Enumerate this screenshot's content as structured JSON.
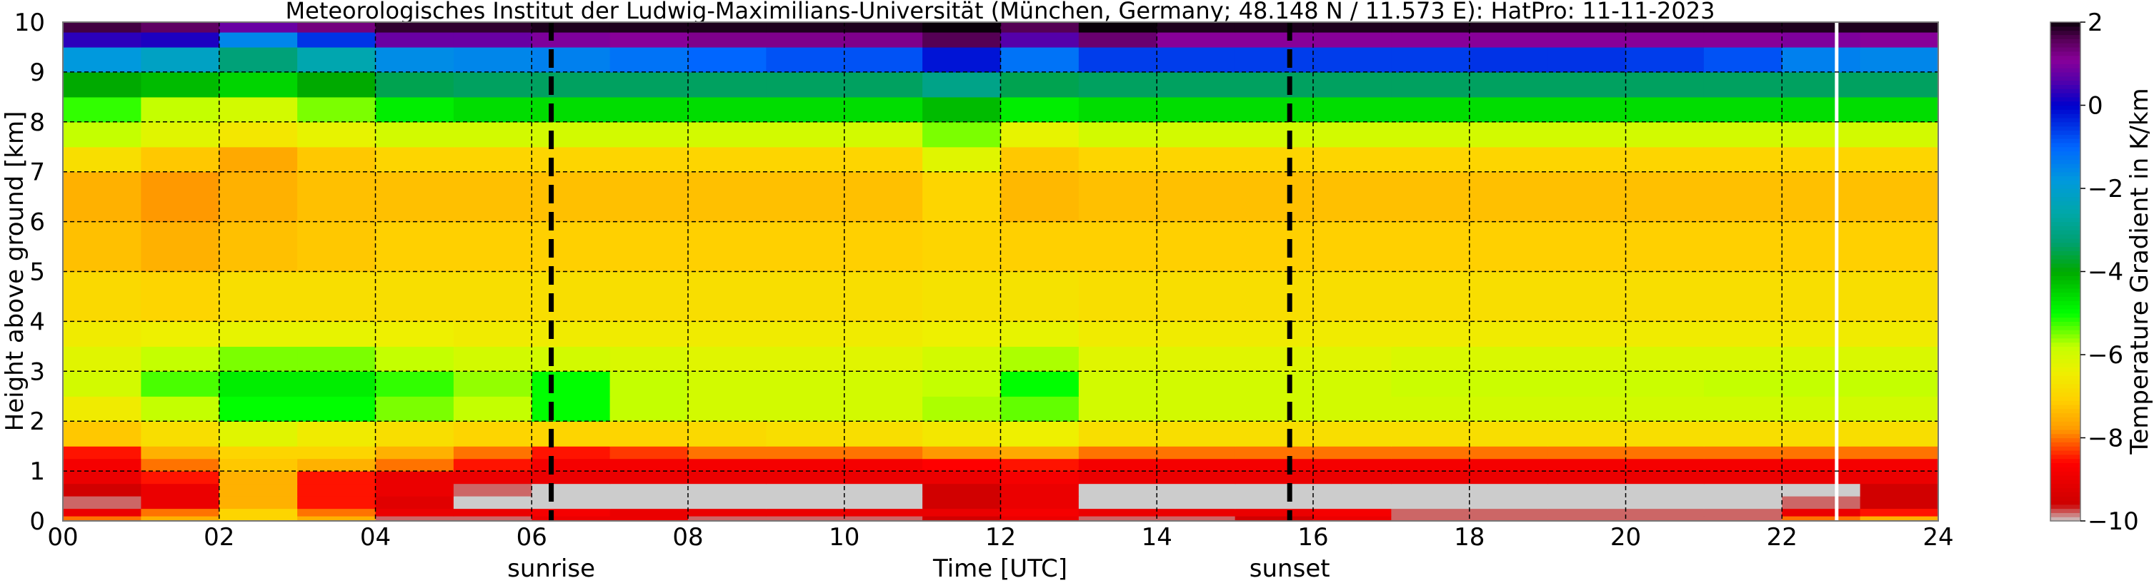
{
  "chart_data": {
    "type": "heatmap",
    "title": "Meteorologisches Institut der Ludwig-Maximilians-Universität (München, Germany; 48.148 N / 11.573 E):    HatPro: 11-11-2023",
    "xlabel": "Time [UTC]",
    "ylabel": "Height above ground [km]",
    "xlim": [
      0,
      24
    ],
    "ylim": [
      0,
      10
    ],
    "xticks": [
      0,
      2,
      4,
      6,
      8,
      10,
      12,
      14,
      16,
      18,
      20,
      22,
      24
    ],
    "xtick_labels": [
      "00",
      "02",
      "04",
      "06",
      "08",
      "10",
      "12",
      "14",
      "16",
      "18",
      "20",
      "22",
      "24"
    ],
    "yticks": [
      0,
      1,
      2,
      3,
      4,
      5,
      6,
      7,
      8,
      9,
      10
    ],
    "ytick_labels": [
      "0",
      "1",
      "2",
      "3",
      "4",
      "5",
      "6",
      "7",
      "8",
      "9",
      "10"
    ],
    "grid": true,
    "markers": [
      {
        "label": "sunrise",
        "time": 6.25
      },
      {
        "label": "sunset",
        "time": 15.7
      }
    ],
    "data_gap_time": 22.7,
    "colorbar": {
      "label": "Temperature Gradient in K/km",
      "range": [
        -10,
        2
      ],
      "ticks": [
        2,
        0,
        -2,
        -4,
        -6,
        -8,
        -10
      ],
      "tick_labels": [
        "2",
        "0",
        "−2",
        "−4",
        "−6",
        "−8",
        "−10"
      ],
      "colormap": [
        {
          "v": -10,
          "c": "#cccccc"
        },
        {
          "v": -9.6,
          "c": "#cc0000"
        },
        {
          "v": -8.6,
          "c": "#ff0000"
        },
        {
          "v": -7.8,
          "c": "#ff9900"
        },
        {
          "v": -7.1,
          "c": "#ffd000"
        },
        {
          "v": -6.4,
          "c": "#eef000"
        },
        {
          "v": -5.8,
          "c": "#c4ff00"
        },
        {
          "v": -5.0,
          "c": "#00ff00"
        },
        {
          "v": -4.0,
          "c": "#00aa00"
        },
        {
          "v": -3.3,
          "c": "#00a070"
        },
        {
          "v": -2.6,
          "c": "#00a8a8"
        },
        {
          "v": -1.8,
          "c": "#0099dd"
        },
        {
          "v": -1.0,
          "c": "#0066ff"
        },
        {
          "v": 0.0,
          "c": "#0000cc"
        },
        {
          "v": 0.6,
          "c": "#5500aa"
        },
        {
          "v": 1.1,
          "c": "#880099"
        },
        {
          "v": 1.6,
          "c": "#550055"
        },
        {
          "v": 2.0,
          "c": "#0a000a"
        }
      ]
    },
    "time_edges": [
      0,
      1,
      2,
      3,
      4,
      5,
      6,
      7,
      8,
      9,
      10,
      11,
      12,
      13,
      14,
      15,
      16,
      17,
      18,
      19,
      20,
      21,
      22,
      23,
      24
    ],
    "height_edges": [
      0,
      0.1,
      0.25,
      0.5,
      0.75,
      1.0,
      1.25,
      1.5,
      2,
      2.5,
      3,
      3.5,
      4,
      5,
      6,
      7,
      7.5,
      8,
      8.5,
      9,
      9.5,
      9.8,
      10
    ],
    "values": [
      [
        -8,
        -7.5,
        -7,
        -7.5,
        -9.8,
        -9.8,
        -9,
        -9,
        -9.8,
        -9.8,
        -9.8,
        -9.5,
        -9,
        -9.8,
        -9.8,
        -9.5,
        -9,
        -9.8,
        -9.8,
        -9.8,
        -9.8,
        -9.8,
        -8,
        -7.5
      ],
      [
        -9,
        -8,
        -7,
        -8,
        -9,
        -9,
        -8.8,
        -9,
        -9,
        -9,
        -9,
        -9,
        -8.8,
        -9,
        -9,
        -9,
        -8.8,
        -9.8,
        -9.8,
        -9.8,
        -9.8,
        -9.8,
        -9,
        -8.5
      ],
      [
        -9.8,
        -9,
        -7.5,
        -8.5,
        -9.2,
        -10,
        -10,
        -10,
        -10,
        -10,
        -10,
        -9.5,
        -9,
        -10,
        -10,
        -10,
        -10,
        -10,
        -10,
        -10,
        -10,
        -10,
        -9.8,
        -9.5
      ],
      [
        -9.5,
        -9,
        -7.5,
        -8.5,
        -9,
        -9.8,
        -10,
        -10,
        -10,
        -10,
        -10,
        -9.5,
        -9,
        -10,
        -10,
        -10,
        -10,
        -10,
        -10,
        -10,
        -10,
        -10,
        -10,
        -9.5
      ],
      [
        -9,
        -8.5,
        -7.5,
        -8.5,
        -9,
        -9,
        -9,
        -9,
        -9,
        -9,
        -9,
        -9,
        -8.8,
        -9,
        -9,
        -9,
        -9,
        -9,
        -9,
        -9,
        -9,
        -9,
        -9,
        -9
      ],
      [
        -8.8,
        -8,
        -7.2,
        -7.5,
        -8,
        -8.5,
        -8.8,
        -8.8,
        -8.8,
        -8.8,
        -8.8,
        -8.6,
        -8.5,
        -8.8,
        -8.8,
        -8.8,
        -8.8,
        -8.8,
        -8.8,
        -8.8,
        -8.8,
        -8.8,
        -8.8,
        -8.8
      ],
      [
        -8.5,
        -7.5,
        -7,
        -7,
        -7.5,
        -8,
        -8.5,
        -8.3,
        -8,
        -8,
        -8,
        -7.8,
        -7.6,
        -8,
        -8,
        -8,
        -8,
        -8,
        -8,
        -8,
        -8,
        -8,
        -8,
        -8
      ],
      [
        -7.2,
        -6.8,
        -6.2,
        -6.5,
        -6.8,
        -7,
        -7,
        -7,
        -6.9,
        -6.8,
        -6.8,
        -6.6,
        -6.4,
        -6.8,
        -6.8,
        -6.8,
        -6.8,
        -6.8,
        -6.8,
        -6.8,
        -6.8,
        -6.8,
        -6.8,
        -6.8
      ],
      [
        -6.5,
        -5.8,
        -5,
        -5,
        -5.5,
        -5.8,
        -5,
        -5.8,
        -6,
        -6,
        -6,
        -5.7,
        -5.4,
        -6,
        -6,
        -6,
        -6,
        -6,
        -6,
        -6,
        -6,
        -6,
        -6,
        -6
      ],
      [
        -6,
        -5.3,
        -4.8,
        -4.8,
        -5.2,
        -5.6,
        -5,
        -5.8,
        -6,
        -6,
        -6,
        -5.8,
        -5,
        -6,
        -6,
        -6,
        -6,
        -5.9,
        -5.9,
        -5.9,
        -5.9,
        -5.8,
        -5.8,
        -5.8
      ],
      [
        -6.2,
        -5.8,
        -5.5,
        -5.5,
        -5.8,
        -6,
        -6,
        -6.1,
        -6.2,
        -6.2,
        -6.2,
        -6,
        -5.7,
        -6.2,
        -6.2,
        -6.2,
        -6.2,
        -6.1,
        -6.1,
        -6.1,
        -6.1,
        -6.1,
        -6.1,
        -6.1
      ],
      [
        -6.5,
        -6.4,
        -6.3,
        -6.3,
        -6.4,
        -6.5,
        -6.5,
        -6.5,
        -6.5,
        -6.5,
        -6.5,
        -6.4,
        -6.3,
        -6.5,
        -6.5,
        -6.5,
        -6.5,
        -6.5,
        -6.5,
        -6.5,
        -6.5,
        -6.5,
        -6.5,
        -6.5
      ],
      [
        -6.9,
        -7,
        -6.8,
        -6.8,
        -6.8,
        -6.8,
        -6.8,
        -6.8,
        -6.8,
        -6.8,
        -6.8,
        -6.7,
        -6.7,
        -6.8,
        -6.8,
        -6.8,
        -6.8,
        -6.8,
        -6.8,
        -6.8,
        -6.8,
        -6.8,
        -6.8,
        -6.8
      ],
      [
        -7.3,
        -7.5,
        -7.3,
        -7.2,
        -7.1,
        -7.1,
        -7.1,
        -7.1,
        -7.1,
        -7.1,
        -7.1,
        -7,
        -7.1,
        -7.1,
        -7.1,
        -7.1,
        -7.1,
        -7.1,
        -7.1,
        -7.1,
        -7.1,
        -7.1,
        -7.1,
        -7.1
      ],
      [
        -7.5,
        -7.8,
        -7.5,
        -7.3,
        -7.3,
        -7.3,
        -7.3,
        -7.3,
        -7.3,
        -7.3,
        -7.3,
        -7,
        -7.4,
        -7.3,
        -7.3,
        -7.3,
        -7.3,
        -7.3,
        -7.3,
        -7.3,
        -7.3,
        -7.3,
        -7.3,
        -7.3
      ],
      [
        -6.8,
        -7.2,
        -7.6,
        -7.2,
        -7,
        -7,
        -7,
        -7,
        -7,
        -7,
        -7,
        -6.2,
        -7.2,
        -7,
        -7,
        -7,
        -7,
        -7,
        -7,
        -7,
        -7,
        -7,
        -7,
        -7
      ],
      [
        -5.8,
        -6.2,
        -6.6,
        -6.3,
        -6,
        -6,
        -6,
        -6,
        -6,
        -6,
        -6,
        -5.5,
        -6.3,
        -6,
        -6,
        -6,
        -6,
        -6,
        -6,
        -6,
        -6,
        -6,
        -6,
        -6
      ],
      [
        -5.2,
        -5.8,
        -6,
        -5.5,
        -4.8,
        -4.6,
        -4.6,
        -4.6,
        -4.6,
        -4.6,
        -4.6,
        -4.2,
        -4.8,
        -4.6,
        -4.6,
        -4.6,
        -4.6,
        -4.6,
        -4.6,
        -4.6,
        -4.6,
        -4.6,
        -4.6,
        -4.6
      ],
      [
        -4,
        -4.2,
        -4.5,
        -4,
        -3.5,
        -3.4,
        -3.4,
        -3.4,
        -3.4,
        -3.4,
        -3.4,
        -3,
        -3.5,
        -3.4,
        -3.4,
        -3.4,
        -3.4,
        -3.4,
        -3.4,
        -3.4,
        -3.4,
        -3.4,
        -3.4,
        -3.4
      ],
      [
        -1.8,
        -2.2,
        -3.2,
        -2.5,
        -1.6,
        -1.5,
        -1.4,
        -1.2,
        -1,
        -0.8,
        -0.8,
        -0.2,
        -1.2,
        -0.6,
        -0.6,
        -0.6,
        -0.6,
        -0.6,
        -0.5,
        -0.5,
        -0.6,
        -0.8,
        -1.4,
        -1.5
      ],
      [
        0.3,
        0.2,
        -1.5,
        -0.5,
        0.8,
        0.8,
        1,
        1.1,
        1.2,
        1.2,
        1.2,
        1.6,
        0.6,
        1.4,
        1.1,
        1.1,
        1.1,
        1.1,
        1.1,
        1.1,
        1.1,
        1.1,
        1.0,
        1.1
      ],
      [
        1.7,
        1.5,
        0.8,
        1.3,
        1.8,
        1.8,
        1.9,
        1.9,
        1.9,
        1.9,
        1.9,
        2,
        1.6,
        2,
        1.9,
        1.9,
        1.9,
        1.9,
        1.9,
        1.9,
        1.9,
        1.9,
        1.9,
        1.9
      ]
    ]
  }
}
